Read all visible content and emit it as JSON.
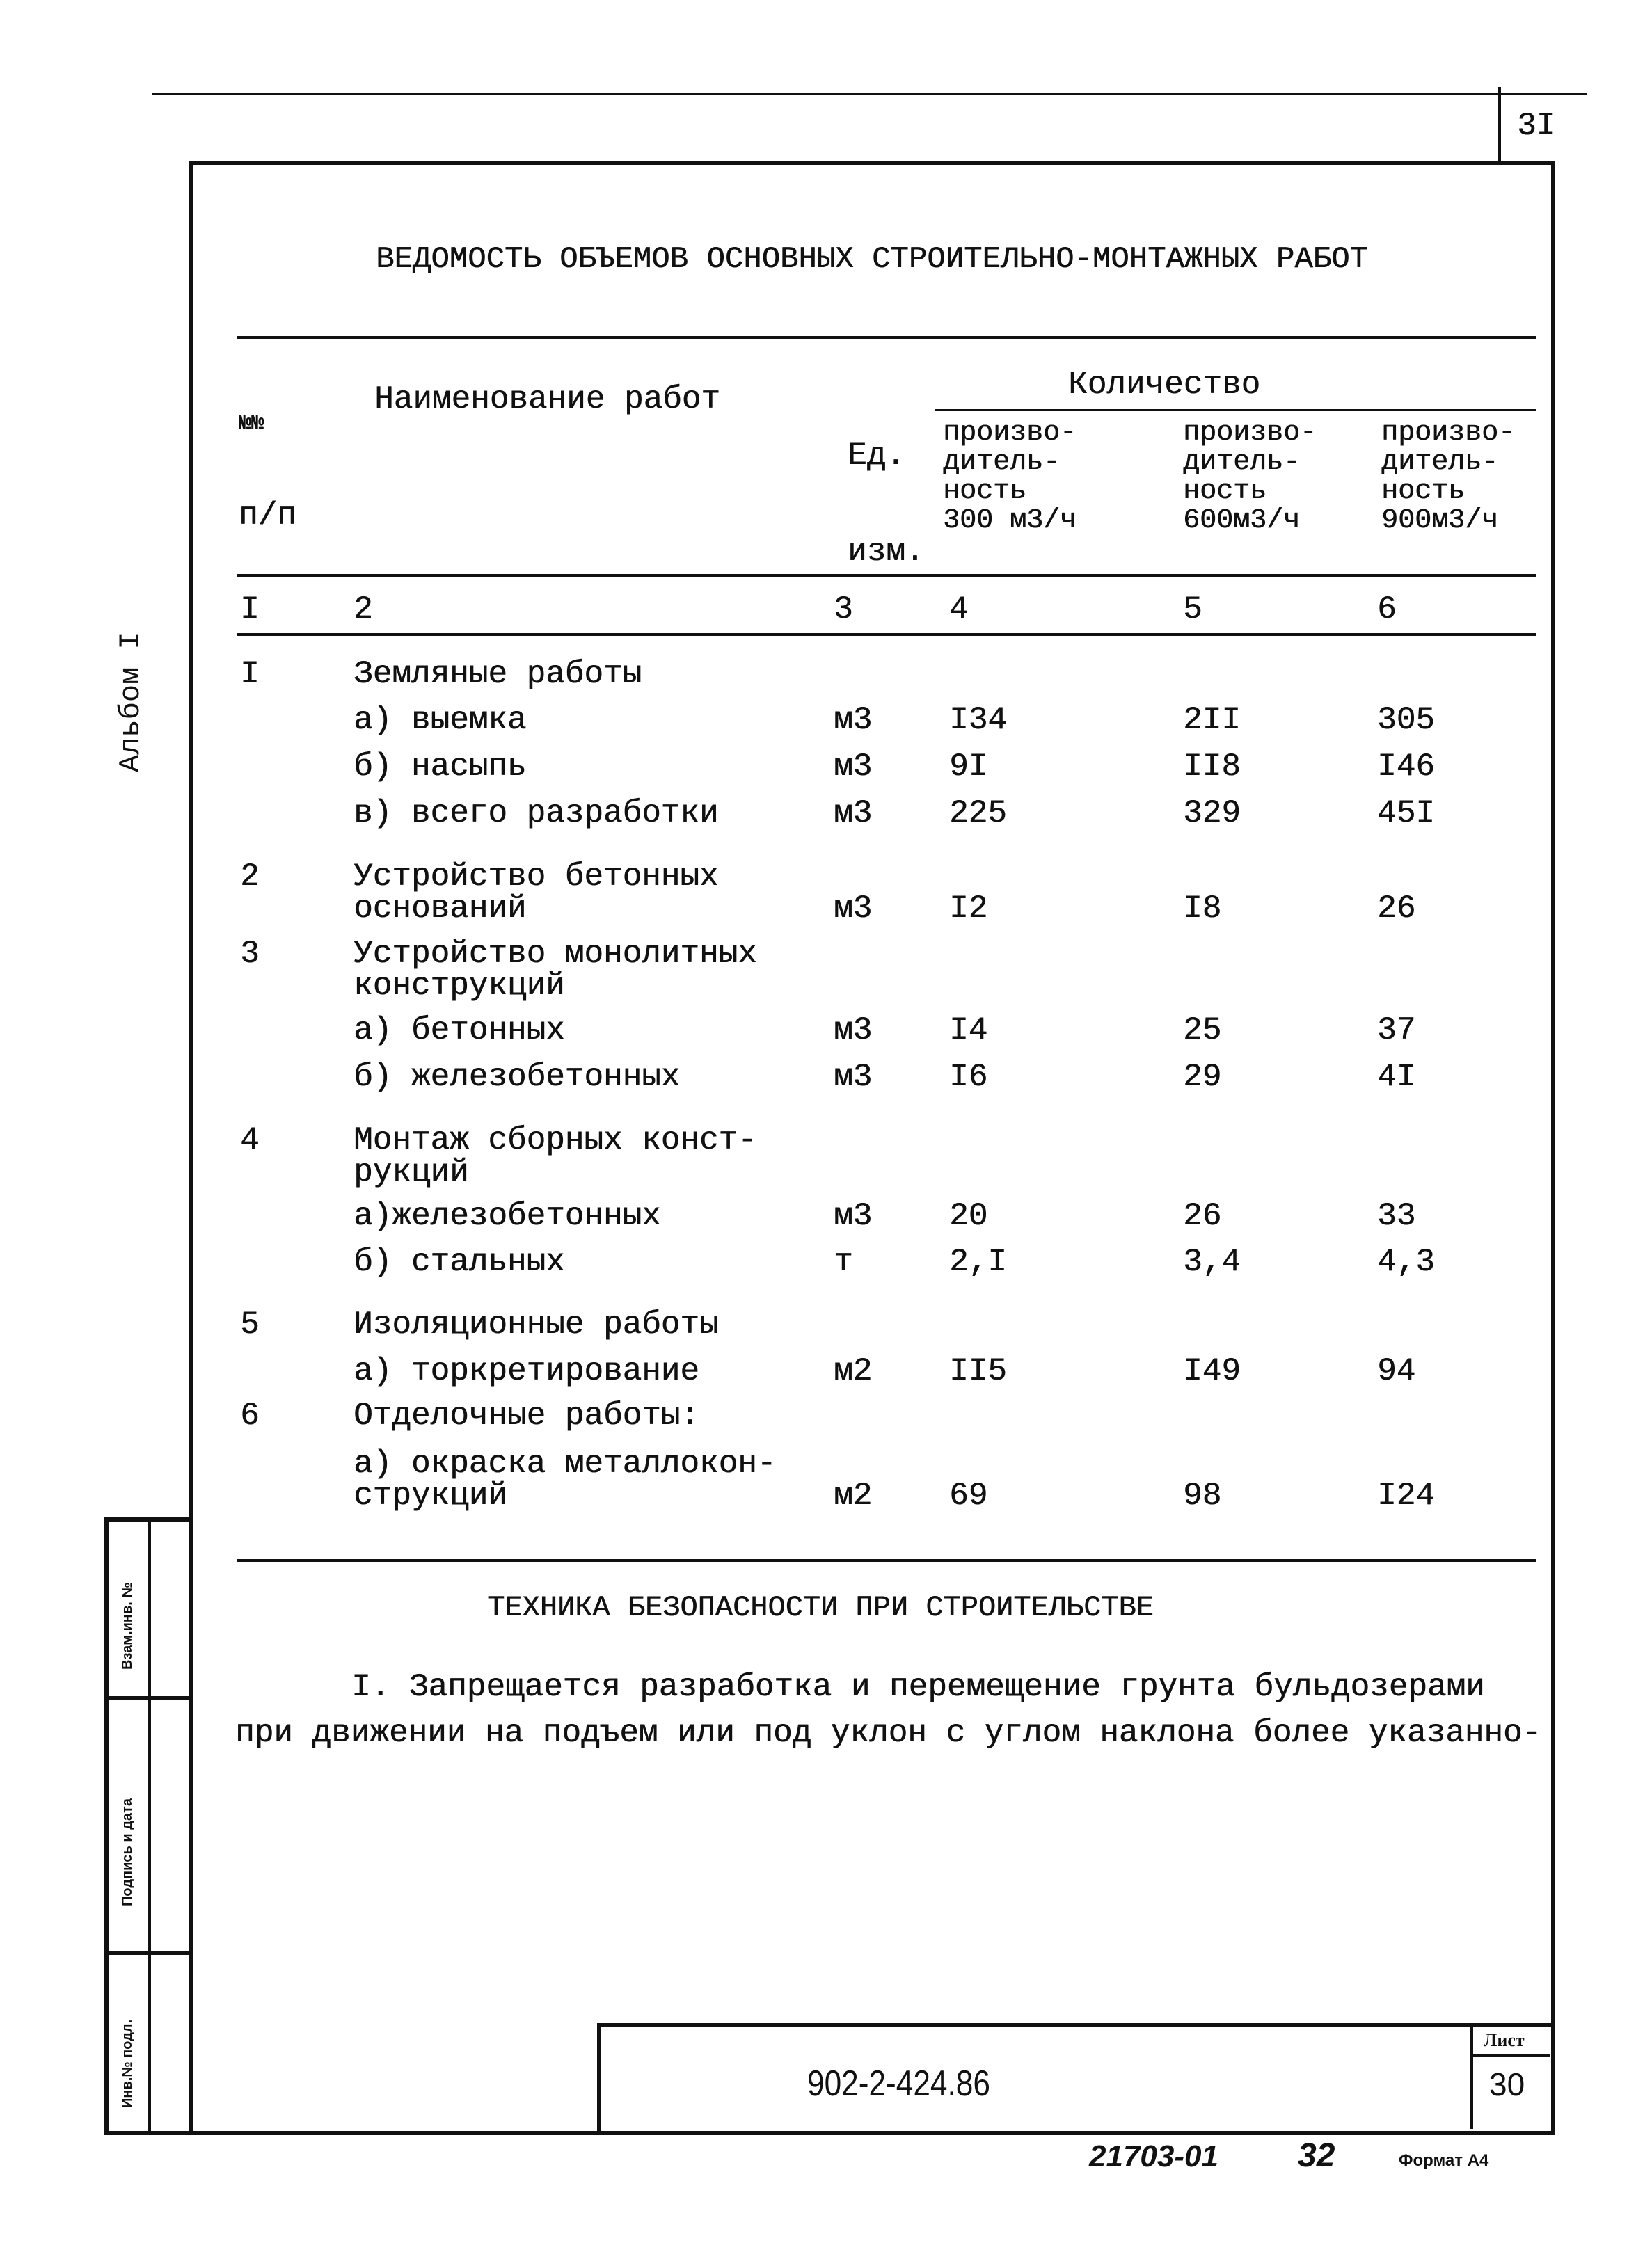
{
  "page_number": "3I",
  "title": "ВЕДОМОСТЬ ОБЪЕМОВ ОСНОВНЫХ СТРОИТЕЛЬНО-МОНТАЖНЫХ РАБОТ",
  "side_label": "Альбом I",
  "table": {
    "headers": {
      "num": [
        "№№",
        "п/п"
      ],
      "name": "Наименование работ",
      "unit": [
        "Ед.",
        "изм."
      ],
      "quantity": "Количество",
      "sub": [
        [
          "произво-",
          "дитель-",
          "ность",
          "300 м3/ч"
        ],
        [
          "произво-",
          "дитель-",
          "ность",
          "600м3/ч"
        ],
        [
          "произво-",
          "дитель-",
          "ность",
          "900м3/ч"
        ]
      ]
    },
    "column_numbers": [
      "I",
      "2",
      "3",
      "4",
      "5",
      "6"
    ],
    "rows": [
      {
        "num": "I",
        "name": [
          "Земляные работы"
        ],
        "unit": "",
        "v": [
          "",
          "",
          ""
        ]
      },
      {
        "num": "",
        "name": [
          "а) выемка"
        ],
        "unit": "м3",
        "v": [
          "I34",
          "2II",
          "305"
        ]
      },
      {
        "num": "",
        "name": [
          "б) насыпь"
        ],
        "unit": "м3",
        "v": [
          "9I",
          "II8",
          "I46"
        ]
      },
      {
        "num": "",
        "name": [
          "в) всего разработки"
        ],
        "unit": "м3",
        "v": [
          "225",
          "329",
          "45I"
        ]
      },
      {
        "num": "2",
        "name": [
          "Устройство бетонных",
          "оснований"
        ],
        "unit": "м3",
        "v": [
          "I2",
          "I8",
          "26"
        ]
      },
      {
        "num": "3",
        "name": [
          "Устройство монолитных",
          "конструкций"
        ],
        "unit": "",
        "v": [
          "",
          "",
          ""
        ]
      },
      {
        "num": "",
        "name": [
          "а) бетонных"
        ],
        "unit": "м3",
        "v": [
          "I4",
          "25",
          "37"
        ]
      },
      {
        "num": "",
        "name": [
          "б) железобетонных"
        ],
        "unit": "м3",
        "v": [
          "I6",
          "29",
          "4I"
        ]
      },
      {
        "num": "4",
        "name": [
          "Монтаж сборных конст-",
          "рукций"
        ],
        "unit": "",
        "v": [
          "",
          "",
          ""
        ]
      },
      {
        "num": "",
        "name": [
          "а)железобетонных"
        ],
        "unit": "м3",
        "v": [
          "20",
          "26",
          "33"
        ]
      },
      {
        "num": "",
        "name": [
          "б) стальных"
        ],
        "unit": "т",
        "v": [
          "2,I",
          "3,4",
          "4,3"
        ]
      },
      {
        "num": "5",
        "name": [
          "Изоляционные работы"
        ],
        "unit": "",
        "v": [
          "",
          "",
          ""
        ]
      },
      {
        "num": "",
        "name": [
          "а) торкретирование"
        ],
        "unit": "м2",
        "v": [
          "II5",
          "I49",
          "94"
        ]
      },
      {
        "num": "6",
        "name": [
          "Отделочные работы:"
        ],
        "unit": "",
        "v": [
          "",
          "",
          ""
        ]
      },
      {
        "num": "",
        "name": [
          "а) окраска металлокон-",
          "струкций"
        ],
        "unit": "м2",
        "v": [
          "69",
          "98",
          "I24"
        ]
      }
    ]
  },
  "section_title": "ТЕХНИКА БЕЗОПАСНОСТИ ПРИ СТРОИТЕЛЬСТВЕ",
  "paragraph": [
    "I. Запрещается разработка и перемещение грунта бульдозерами",
    "при движении на подъем или под уклон с углом наклона более указанно-"
  ],
  "stamp": {
    "code": "902-2-424.86",
    "sheet_label": "Лист",
    "sheet_number": "30",
    "side_labels": [
      "Взам.инв. №",
      "Подпись и дата",
      "Инв.№ подл."
    ]
  },
  "footer": {
    "order": "21703-01",
    "copy": "32",
    "format": "Формат А4"
  }
}
